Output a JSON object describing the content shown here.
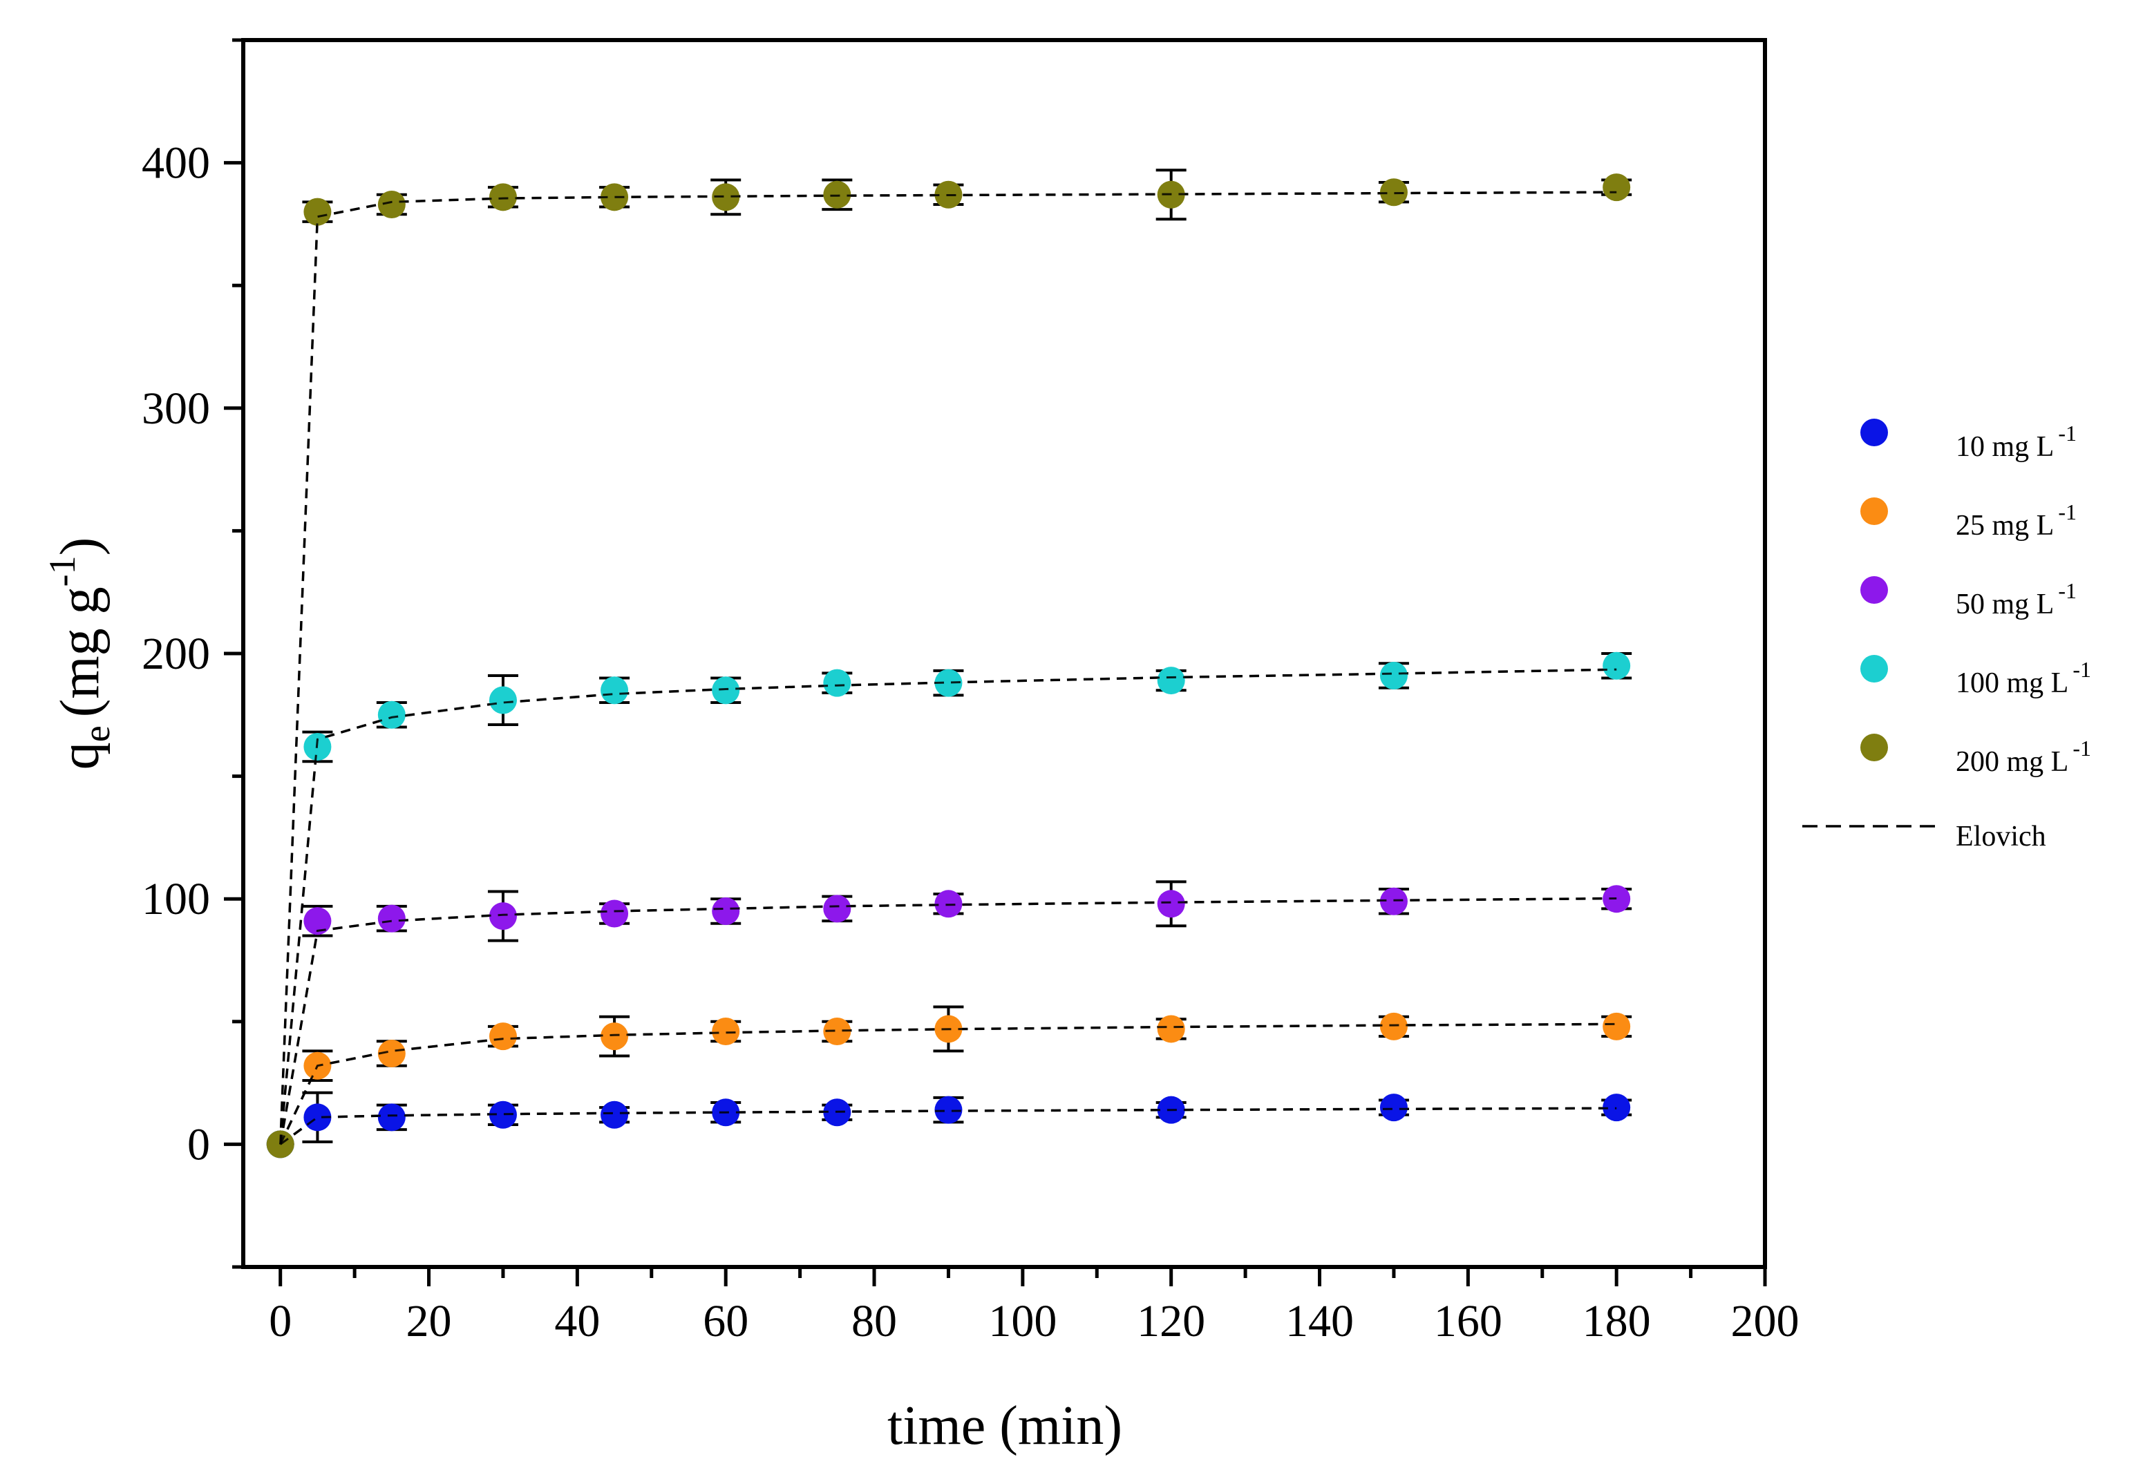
{
  "chart_data": {
    "type": "scatter",
    "xlabel": "time (min)",
    "ylabel": {
      "main": "q",
      "sub": "e",
      "unit": "(mg g",
      "sup": "-1",
      "close": ")"
    },
    "xlim": [
      -5,
      200
    ],
    "ylim": [
      -50,
      450
    ],
    "xticks": [
      0,
      20,
      40,
      60,
      80,
      100,
      120,
      140,
      160,
      180,
      200
    ],
    "yticks": [
      0,
      100,
      200,
      300,
      400
    ],
    "x": [
      0,
      5,
      15,
      30,
      45,
      60,
      75,
      90,
      120,
      150,
      180
    ],
    "legend_position": "right",
    "fit_label": "Elovich",
    "series": [
      {
        "name": "10 mg L",
        "sup": "-1",
        "color": "#0a14e6",
        "values": [
          0,
          11,
          11,
          12,
          12,
          13,
          13,
          14,
          14,
          15,
          15
        ],
        "errors": [
          0,
          10,
          5,
          4,
          3,
          4,
          3,
          5,
          3,
          3,
          3
        ],
        "fit": [
          0,
          11,
          11.7,
          12.3,
          12.7,
          13.0,
          13.3,
          13.6,
          14.0,
          14.4,
          14.7
        ]
      },
      {
        "name": "25 mg L",
        "sup": "-1",
        "color": "#fb8c13",
        "values": [
          0,
          32,
          37,
          44,
          44,
          46,
          46,
          47,
          47,
          48,
          48
        ],
        "errors": [
          0,
          6,
          5,
          4,
          8,
          4,
          4,
          9,
          4,
          4,
          4
        ],
        "fit": [
          0,
          32,
          38,
          43,
          44.5,
          45.5,
          46.3,
          46.9,
          47.8,
          48.5,
          49.0
        ]
      },
      {
        "name": "50 mg L",
        "sup": "-1",
        "color": "#8d18eb",
        "values": [
          0,
          91,
          92,
          93,
          94,
          95,
          96,
          98,
          98,
          99,
          100
        ],
        "errors": [
          0,
          6,
          5,
          10,
          4,
          5,
          5,
          4,
          9,
          5,
          4
        ],
        "fit": [
          0,
          87,
          91,
          93.5,
          95,
          96,
          97,
          97.6,
          98.6,
          99.4,
          100.2
        ]
      },
      {
        "name": "100 mg L",
        "sup": "-1",
        "color": "#1ccfd0",
        "values": [
          0,
          162,
          175,
          181,
          185,
          185,
          188,
          188,
          189,
          191,
          195
        ],
        "errors": [
          0,
          6,
          5,
          10,
          5,
          5,
          4,
          5,
          4,
          5,
          5
        ],
        "fit": [
          0,
          165,
          174,
          180,
          183.5,
          185.5,
          187,
          188.2,
          190.3,
          191.8,
          193.5
        ]
      },
      {
        "name": "200 mg L",
        "sup": "-1",
        "color": "#7f7e10",
        "values": [
          0,
          380,
          383,
          386,
          386,
          386,
          387,
          387,
          387,
          388,
          390
        ],
        "errors": [
          0,
          4,
          4,
          4,
          4,
          7,
          6,
          4,
          10,
          4,
          3
        ],
        "fit": [
          0,
          378,
          384,
          385.5,
          386,
          386.3,
          386.6,
          386.8,
          387.2,
          387.6,
          388.0
        ]
      }
    ]
  }
}
